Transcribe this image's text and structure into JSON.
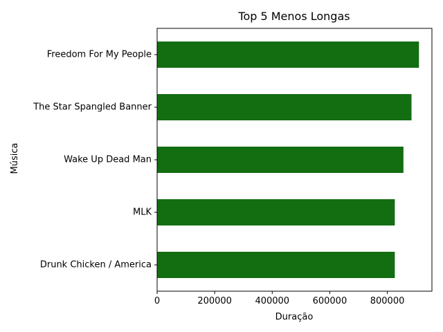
{
  "colors": {
    "bar": "#136d11",
    "axis": "#000000",
    "background": "#ffffff"
  },
  "chart_data": {
    "type": "bar",
    "orientation": "horizontal",
    "title": "Top 5 Menos Longas",
    "xlabel": "Duração",
    "ylabel": "Música",
    "categories": [
      "Drunk Chicken / America",
      "MLK",
      "Wake Up Dead Man",
      "The Star Spangled Banner",
      "Freedom For My People"
    ],
    "values": [
      826000,
      826000,
      856000,
      884000,
      910000
    ],
    "xlim": [
      0,
      955000
    ],
    "xticks": [
      0,
      200000,
      400000,
      600000,
      800000
    ],
    "xtick_labels": [
      "0",
      "200000",
      "400000",
      "600000",
      "800000"
    ],
    "grid": false,
    "legend": "none"
  }
}
